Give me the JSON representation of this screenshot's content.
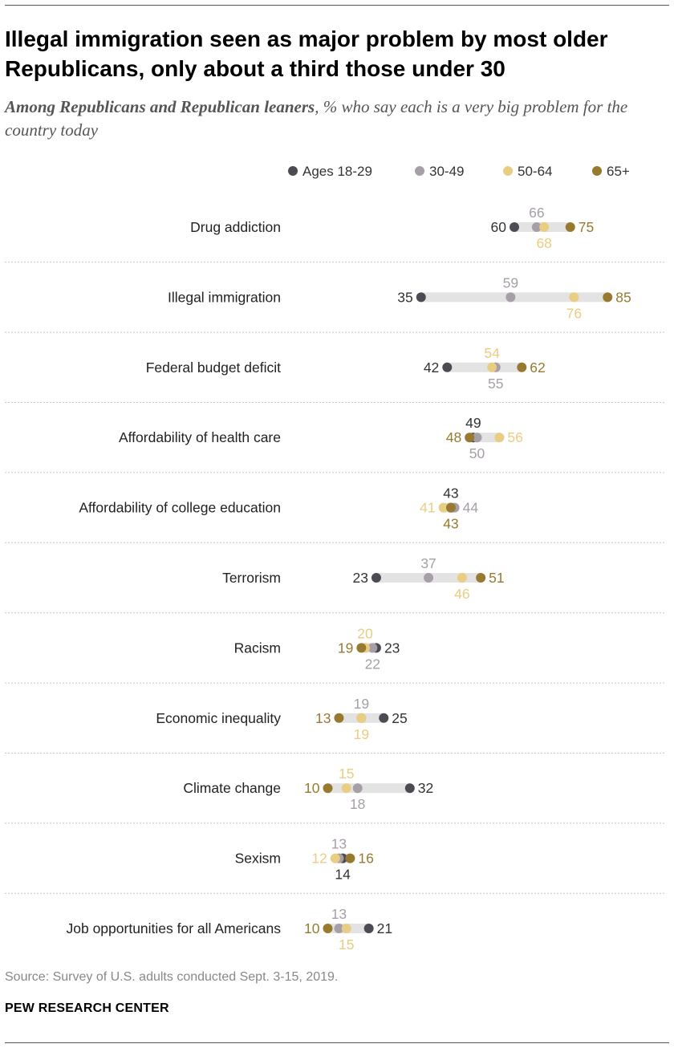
{
  "header": {
    "title": "Illegal immigration seen as major problem by most older Republicans, only about a third those under 30",
    "subtitle_bold": "Among Republicans and Republican leaners",
    "subtitle_rest": ", % who say each is a very big problem for the country today"
  },
  "footer": {
    "source": "Source: Survey of U.S. adults conducted Sept. 3-15, 2019.",
    "org": "PEW RESEARCH CENTER"
  },
  "chart_data": {
    "type": "dot",
    "unit": "%",
    "legend_position": "top",
    "series": [
      {
        "name": "Ages 18-29",
        "color": "#4e4a53"
      },
      {
        "name": "30-49",
        "color": "#a79fa8"
      },
      {
        "name": "50-64",
        "color": "#e9cd82"
      },
      {
        "name": "65+",
        "color": "#977a2f"
      }
    ],
    "categories": [
      "Drug addiction",
      "Illegal immigration",
      "Federal budget deficit",
      "Affordability of health care",
      "Affordability of college education",
      "Terrorism",
      "Racism",
      "Economic inequality",
      "Climate change",
      "Sexism",
      "Job opportunities for all Americans"
    ],
    "values": [
      [
        60,
        66,
        68,
        75
      ],
      [
        35,
        59,
        76,
        85
      ],
      [
        42,
        55,
        54,
        62
      ],
      [
        49,
        50,
        56,
        48
      ],
      [
        43,
        44,
        41,
        43
      ],
      [
        23,
        37,
        46,
        51
      ],
      [
        23,
        22,
        20,
        19
      ],
      [
        25,
        19,
        19,
        13
      ],
      [
        32,
        18,
        15,
        10
      ],
      [
        14,
        13,
        12,
        16
      ],
      [
        21,
        13,
        15,
        10
      ]
    ],
    "colors": {
      "bar": "#e3e3e3",
      "separator": "#c8c8c8",
      "category_text": "#222222"
    }
  }
}
